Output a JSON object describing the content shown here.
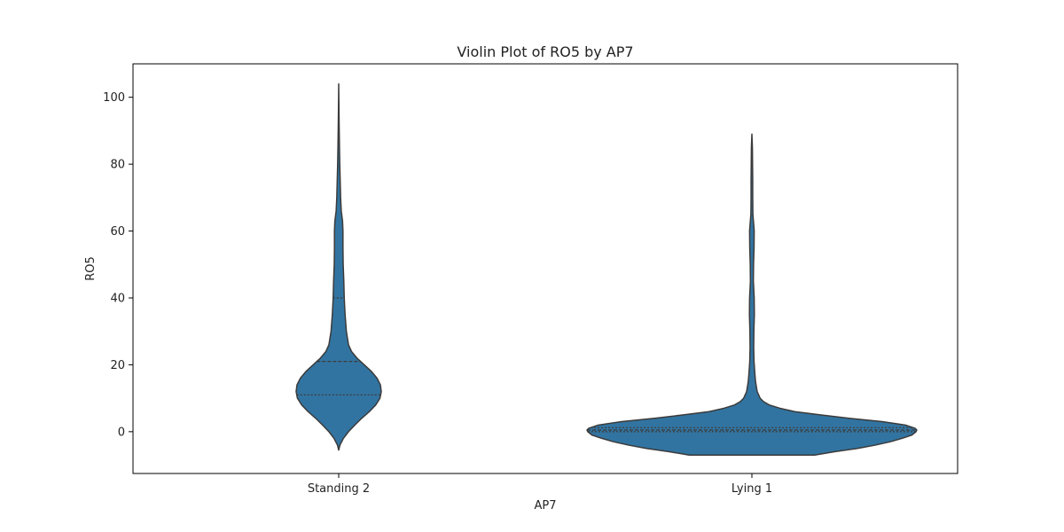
{
  "chart_data": {
    "type": "violin",
    "title": "Violin Plot of RO5 by AP7",
    "xlabel": "AP7",
    "ylabel": "RO5",
    "categories": [
      "Standing 2",
      "Lying 1"
    ],
    "ylim": [
      -12.5,
      110
    ],
    "yticks": [
      0,
      20,
      40,
      60,
      80,
      100
    ],
    "grid": false,
    "fill_color": "#3274a1",
    "edge_color": "#3b3b3b",
    "violins": [
      {
        "category": "Standing 2",
        "min": -5.5,
        "max": 104,
        "quartiles": [
          11,
          21,
          40
        ],
        "density_profile": [
          [
            -5.5,
            0.0
          ],
          [
            -4,
            0.03
          ],
          [
            -2,
            0.11
          ],
          [
            0,
            0.23
          ],
          [
            2,
            0.38
          ],
          [
            4,
            0.54
          ],
          [
            6,
            0.72
          ],
          [
            8,
            0.87
          ],
          [
            10,
            0.97
          ],
          [
            12,
            1.0
          ],
          [
            14,
            0.98
          ],
          [
            16,
            0.9
          ],
          [
            18,
            0.77
          ],
          [
            20,
            0.6
          ],
          [
            22,
            0.43
          ],
          [
            24,
            0.3
          ],
          [
            26,
            0.23
          ],
          [
            30,
            0.18
          ],
          [
            35,
            0.15
          ],
          [
            40,
            0.13
          ],
          [
            45,
            0.12
          ],
          [
            50,
            0.105
          ],
          [
            55,
            0.1
          ],
          [
            60,
            0.1
          ],
          [
            63,
            0.09
          ],
          [
            66,
            0.06
          ],
          [
            70,
            0.045
          ],
          [
            75,
            0.035
          ],
          [
            80,
            0.025
          ],
          [
            85,
            0.018
          ],
          [
            90,
            0.012
          ],
          [
            95,
            0.007
          ],
          [
            100,
            0.003
          ],
          [
            104,
            0.0
          ]
        ]
      },
      {
        "category": "Lying 1",
        "min": -7,
        "max": 89,
        "quartiles": [
          0,
          0.5,
          1.2
        ],
        "density_profile": [
          [
            -7,
            0.38
          ],
          [
            -6,
            0.5
          ],
          [
            -5,
            0.64
          ],
          [
            -4,
            0.75
          ],
          [
            -3,
            0.84
          ],
          [
            -2,
            0.91
          ],
          [
            -1,
            0.97
          ],
          [
            0,
            0.995
          ],
          [
            0.5,
            1.0
          ],
          [
            1,
            0.99
          ],
          [
            2,
            0.93
          ],
          [
            3,
            0.79
          ],
          [
            4,
            0.59
          ],
          [
            5,
            0.42
          ],
          [
            6,
            0.26
          ],
          [
            7,
            0.17
          ],
          [
            8,
            0.105
          ],
          [
            9,
            0.07
          ],
          [
            10,
            0.05
          ],
          [
            12,
            0.032
          ],
          [
            15,
            0.022
          ],
          [
            18,
            0.017
          ],
          [
            21,
            0.013
          ],
          [
            25,
            0.011
          ],
          [
            30,
            0.012
          ],
          [
            35,
            0.015
          ],
          [
            40,
            0.014
          ],
          [
            45,
            0.009
          ],
          [
            50,
            0.01
          ],
          [
            55,
            0.013
          ],
          [
            60,
            0.014
          ],
          [
            62,
            0.011
          ],
          [
            65,
            0.006
          ],
          [
            70,
            0.005
          ],
          [
            75,
            0.005
          ],
          [
            80,
            0.004
          ],
          [
            85,
            0.003
          ],
          [
            89,
            0.0
          ]
        ]
      }
    ]
  }
}
